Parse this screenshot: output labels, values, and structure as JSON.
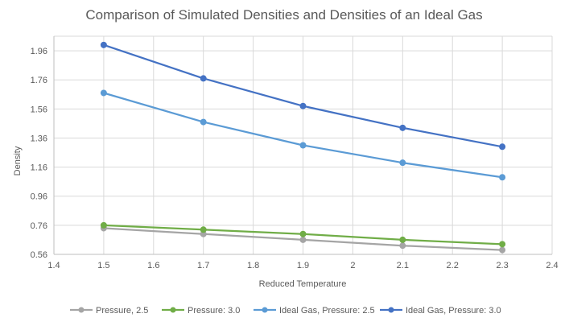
{
  "chart_data": {
    "type": "line",
    "title": "Comparison of Simulated Densities and Densities of an Ideal Gas",
    "xlabel": "Reduced Temperature",
    "ylabel": "Density",
    "xlim": [
      1.4,
      2.4
    ],
    "ylim": [
      0.56,
      2.06
    ],
    "x_ticks": [
      "1.4",
      "1.5",
      "1.6",
      "1.7",
      "1.8",
      "1.9",
      "2",
      "2.1",
      "2.2",
      "2.3",
      "2.4"
    ],
    "y_ticks": [
      "0.56",
      "0.76",
      "0.96",
      "1.16",
      "1.36",
      "1.56",
      "1.76",
      "1.96"
    ],
    "grid": "horizontal and vertical",
    "legend_position": "bottom",
    "x": [
      1.5,
      1.7,
      1.9,
      2.1,
      2.3
    ],
    "series": [
      {
        "name": "Pressure, 2.5",
        "color": "#A5A5A5",
        "values": [
          0.74,
          0.7,
          0.66,
          0.62,
          0.59
        ]
      },
      {
        "name": "Pressure: 3.0",
        "color": "#70AD47",
        "values": [
          0.76,
          0.73,
          0.7,
          0.66,
          0.63
        ]
      },
      {
        "name": "Ideal Gas, Pressure: 2.5",
        "color": "#5B9BD5",
        "values": [
          1.67,
          1.47,
          1.31,
          1.19,
          1.09
        ]
      },
      {
        "name": "Ideal Gas, Pressure: 3.0",
        "color": "#4472C4",
        "values": [
          2.0,
          1.77,
          1.58,
          1.43,
          1.3
        ]
      }
    ]
  }
}
